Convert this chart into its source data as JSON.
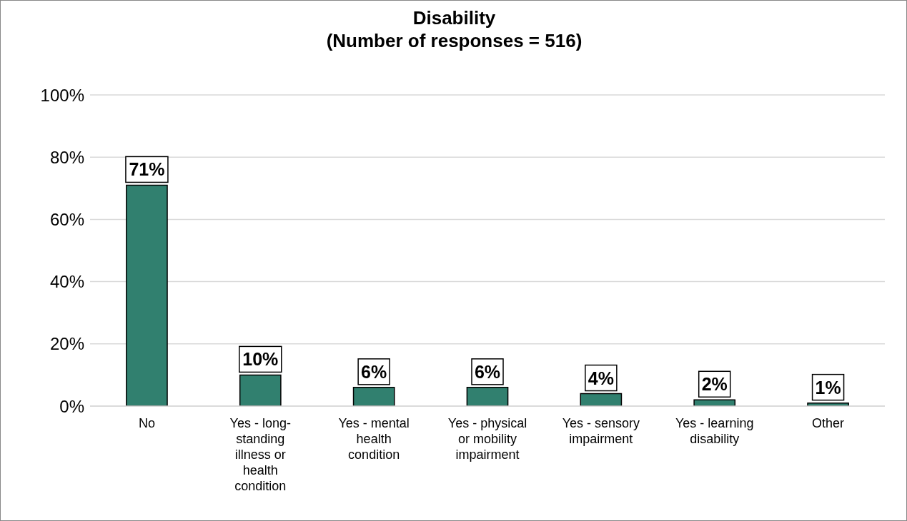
{
  "chart_data": {
    "type": "bar",
    "title": "Disability\n(Number of responses = 516)",
    "categories": [
      "No",
      "Yes - long-standing illness or health condition",
      "Yes - mental health condition",
      "Yes - physical or mobility impairment",
      "Yes - sensory impairment",
      "Yes - learning disability",
      "Other"
    ],
    "values": [
      71,
      10,
      6,
      6,
      4,
      2,
      1
    ],
    "value_labels": [
      "71%",
      "10%",
      "6%",
      "6%",
      "4%",
      "2%",
      "1%"
    ],
    "color": "#31806f",
    "ylim": [
      0,
      100
    ],
    "yticks": [
      {
        "value": 0,
        "label": "0%"
      },
      {
        "value": 20,
        "label": "20%"
      },
      {
        "value": 40,
        "label": "40%"
      },
      {
        "value": 60,
        "label": "60%"
      },
      {
        "value": 80,
        "label": "80%"
      },
      {
        "value": 100,
        "label": "100%"
      }
    ],
    "grid": "y"
  }
}
